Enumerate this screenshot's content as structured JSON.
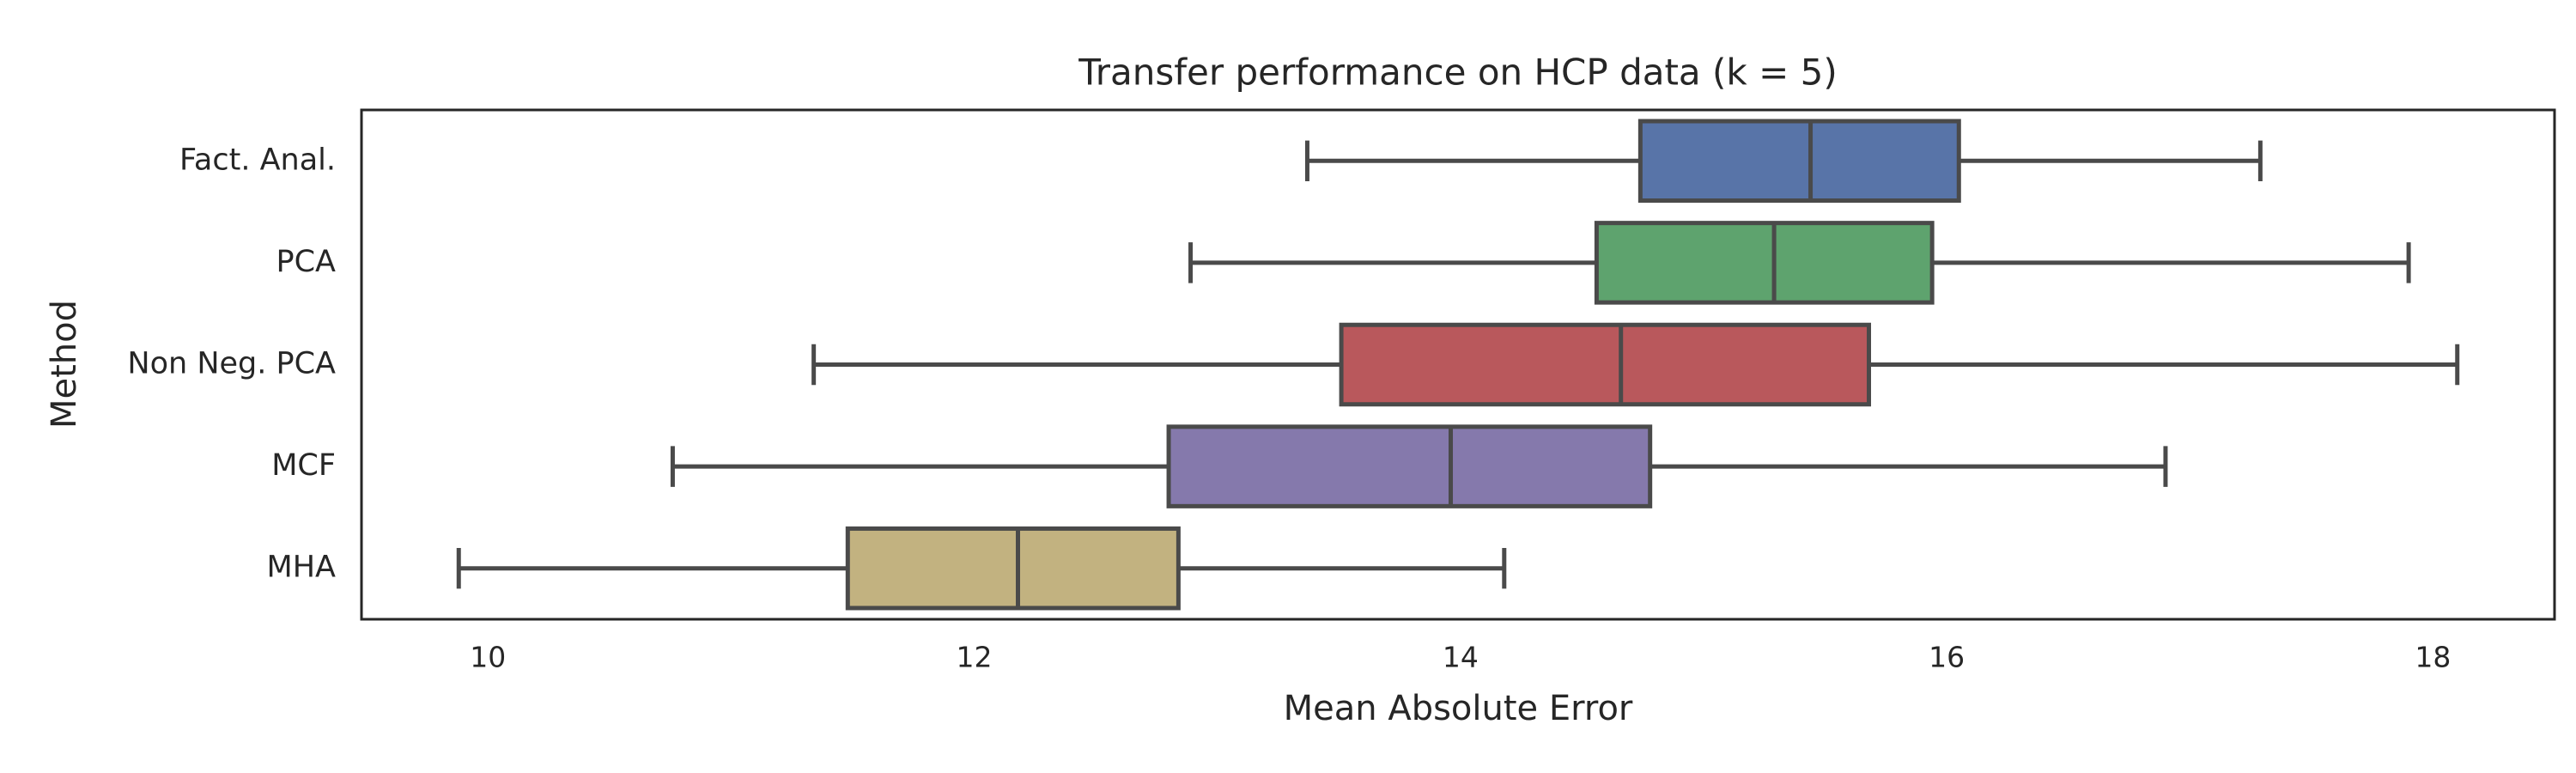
{
  "chart_data": {
    "type": "boxplot",
    "title": "Transfer performance on HCP data (k = 5)",
    "xlabel": "Mean Absolute Error",
    "ylabel": "Method",
    "categories": [
      "Fact. Anal.",
      "PCA",
      "Non Neg. PCA",
      "MCF",
      "MHA"
    ],
    "colors": [
      "#5874a8",
      "#5ea36e",
      "#b9585c",
      "#8579ac",
      "#c2b280"
    ],
    "boxes": [
      {
        "min": 13.37,
        "q1": 14.74,
        "median": 15.44,
        "q3": 16.05,
        "max": 17.29
      },
      {
        "min": 12.89,
        "q1": 14.56,
        "median": 15.29,
        "q3": 15.94,
        "max": 17.9
      },
      {
        "min": 11.34,
        "q1": 13.51,
        "median": 14.66,
        "q3": 15.68,
        "max": 18.1
      },
      {
        "min": 10.76,
        "q1": 12.8,
        "median": 13.96,
        "q3": 14.78,
        "max": 16.9
      },
      {
        "min": 9.88,
        "q1": 11.48,
        "median": 12.18,
        "q3": 12.84,
        "max": 14.18
      }
    ],
    "xlim": [
      9.48,
      18.5
    ],
    "xticks": [
      10,
      12,
      14,
      16,
      18
    ],
    "grid": false
  }
}
